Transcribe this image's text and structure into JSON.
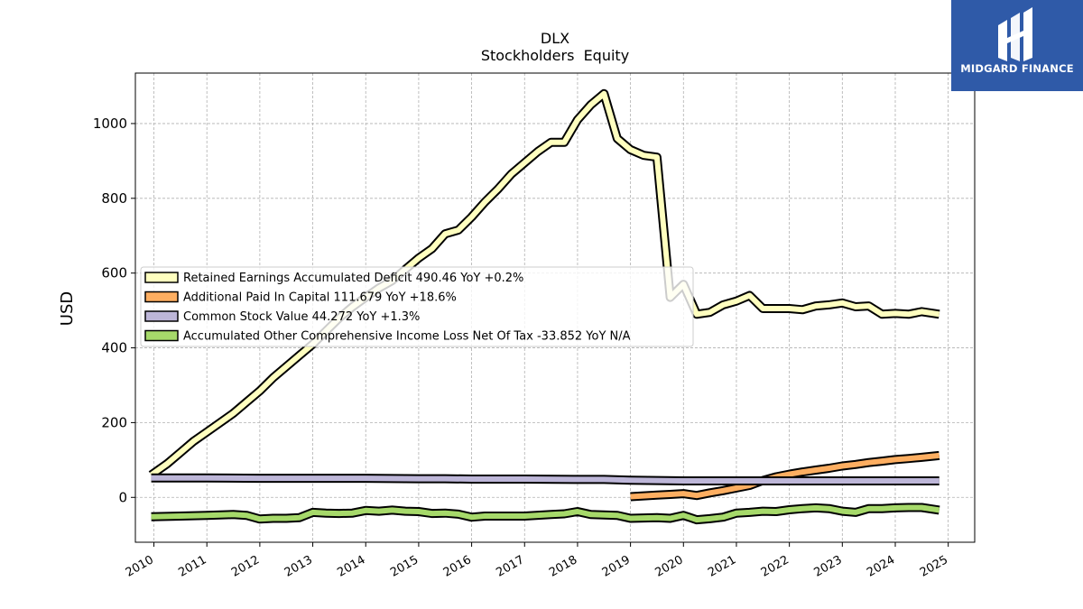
{
  "branding": {
    "logo_text": "MIDGARD FINANCE",
    "logo_color": "#2f5aa8"
  },
  "chart_data": {
    "type": "line",
    "title": "DLX",
    "subtitle": "Stockholders  Equity",
    "ylabel": "USD",
    "xlabel": "",
    "ylim": [
      -120,
      1135
    ],
    "xlim": [
      2009.65,
      2025.5
    ],
    "yticks": [
      0,
      200,
      400,
      600,
      800,
      1000
    ],
    "xticks": [
      2010,
      2011,
      2012,
      2013,
      2014,
      2015,
      2016,
      2017,
      2018,
      2019,
      2020,
      2021,
      2022,
      2023,
      2024,
      2025
    ],
    "grid": true,
    "legend_position": "center-left",
    "series": [
      {
        "name": "Retained Earnings Accumulated Deficit",
        "legend_label": "Retained Earnings Accumulated Deficit  490.46 YoY +0.2%",
        "color": "#ffffbf",
        "x": [
          2009.95,
          2010.25,
          2010.5,
          2010.75,
          2011.0,
          2011.25,
          2011.5,
          2011.75,
          2012.0,
          2012.25,
          2012.5,
          2012.75,
          2013.0,
          2013.25,
          2013.5,
          2013.75,
          2014.0,
          2014.25,
          2014.5,
          2014.75,
          2015.0,
          2015.25,
          2015.5,
          2015.75,
          2016.0,
          2016.25,
          2016.5,
          2016.75,
          2017.0,
          2017.25,
          2017.5,
          2017.75,
          2018.0,
          2018.25,
          2018.5,
          2018.75,
          2019.0,
          2019.25,
          2019.5,
          2019.75,
          2020.0,
          2020.25,
          2020.5,
          2020.75,
          2021.0,
          2021.25,
          2021.5,
          2021.75,
          2022.0,
          2022.25,
          2022.5,
          2022.75,
          2023.0,
          2023.25,
          2023.5,
          2023.75,
          2024.0,
          2024.25,
          2024.5,
          2024.83
        ],
        "y": [
          60,
          90,
          120,
          150,
          175,
          200,
          225,
          255,
          285,
          320,
          350,
          380,
          410,
          445,
          480,
          510,
          535,
          560,
          580,
          610,
          640,
          665,
          705,
          715,
          750,
          790,
          825,
          865,
          895,
          925,
          950,
          950,
          1010,
          1050,
          1080,
          960,
          930,
          915,
          910,
          535,
          570,
          490,
          495,
          515,
          525,
          540,
          505,
          505,
          505,
          502,
          512,
          515,
          520,
          510,
          512,
          490,
          492,
          490,
          497,
          490
        ]
      },
      {
        "name": "Additional Paid In Capital",
        "legend_label": "Additional Paid In Capital  111.679 YoY +18.6%",
        "color": "#fdae61",
        "x": [
          2019.0,
          2019.25,
          2019.5,
          2019.75,
          2020.0,
          2020.25,
          2020.5,
          2020.75,
          2021.0,
          2021.25,
          2021.5,
          2021.75,
          2022.0,
          2022.25,
          2022.5,
          2022.75,
          2023.0,
          2023.25,
          2023.5,
          2023.75,
          2024.0,
          2024.25,
          2024.5,
          2024.83
        ],
        "y": [
          2,
          4,
          6,
          8,
          10,
          5,
          12,
          18,
          25,
          32,
          45,
          55,
          62,
          68,
          73,
          78,
          84,
          88,
          93,
          97,
          101,
          104,
          107,
          112
        ]
      },
      {
        "name": "Common Stock Value",
        "legend_label": "Common Stock Value  44.272 YoY +1.3%",
        "color": "#bdb6d8",
        "x": [
          2009.95,
          2011.0,
          2012.0,
          2013.0,
          2014.0,
          2015.0,
          2015.5,
          2016.0,
          2017.0,
          2018.0,
          2018.5,
          2019.0,
          2019.5,
          2020.0,
          2021.0,
          2022.0,
          2023.0,
          2024.0,
          2024.83
        ],
        "y": [
          52,
          52,
          51,
          51,
          51,
          50,
          50,
          49,
          49,
          48,
          48,
          46,
          45,
          44,
          44,
          44,
          44,
          44,
          44
        ]
      },
      {
        "name": "Accumulated Other Comprehensive Income Loss Net Of Tax",
        "legend_label": "Accumulated Other Comprehensive Income Loss Net Of Tax  -33.852 YoY N/A",
        "color": "#a6d96a",
        "x": [
          2009.95,
          2010.5,
          2011.0,
          2011.5,
          2011.75,
          2012.0,
          2012.25,
          2012.5,
          2012.75,
          2013.0,
          2013.25,
          2013.5,
          2013.75,
          2014.0,
          2014.25,
          2014.5,
          2014.75,
          2015.0,
          2015.25,
          2015.5,
          2015.75,
          2016.0,
          2016.25,
          2016.5,
          2017.0,
          2017.5,
          2017.75,
          2018.0,
          2018.25,
          2018.5,
          2018.75,
          2019.0,
          2019.25,
          2019.5,
          2019.75,
          2020.0,
          2020.25,
          2020.5,
          2020.75,
          2021.0,
          2021.25,
          2021.5,
          2021.75,
          2022.0,
          2022.25,
          2022.5,
          2022.75,
          2023.0,
          2023.25,
          2023.5,
          2023.75,
          2024.0,
          2024.25,
          2024.5,
          2024.83
        ],
        "y": [
          -52,
          -50,
          -48,
          -46,
          -48,
          -58,
          -56,
          -56,
          -54,
          -40,
          -42,
          -43,
          -42,
          -35,
          -37,
          -34,
          -37,
          -38,
          -43,
          -42,
          -45,
          -53,
          -50,
          -50,
          -50,
          -46,
          -44,
          -38,
          -46,
          -47,
          -48,
          -56,
          -55,
          -54,
          -56,
          -48,
          -60,
          -57,
          -53,
          -42,
          -40,
          -37,
          -38,
          -33,
          -30,
          -28,
          -30,
          -37,
          -40,
          -30,
          -30,
          -28,
          -27,
          -27,
          -34
        ]
      }
    ]
  }
}
